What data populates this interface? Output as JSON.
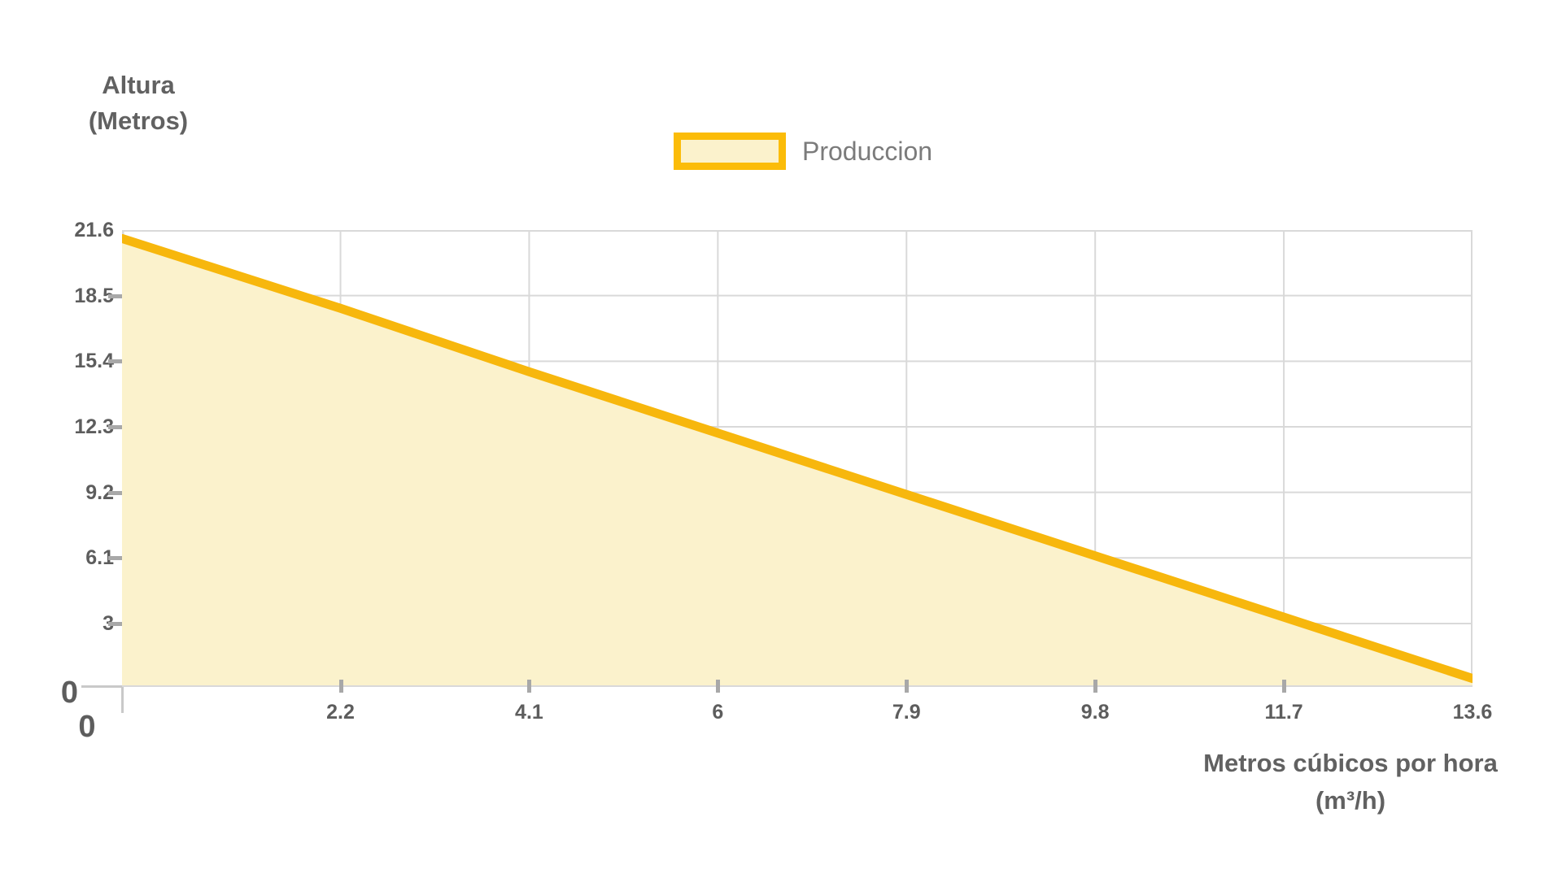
{
  "y_axis": {
    "title_line1": "Altura",
    "title_line2": "(Metros)",
    "origin_label": "0"
  },
  "x_axis": {
    "title_line1": "Metros cúbicos por hora",
    "title_line2": "(m³/h)",
    "origin_label": "0"
  },
  "legend": {
    "label": "Produccion"
  },
  "colors": {
    "line": "#F7B70D",
    "area_fill": "#FBF2CC",
    "legend_border": "#FBBC09",
    "grid": "#D9D9D9",
    "border": "#D9D9D9",
    "tick_mark": "#A8A8A8",
    "tick_text": "#5D5D5D",
    "title_text": "#616161",
    "legend_text": "#7B7B7B"
  },
  "chart_data": {
    "type": "area",
    "title": "",
    "xlabel": "Metros cúbicos por hora (m³/h)",
    "ylabel": "Altura (Metros)",
    "xlim": [
      0,
      13.6
    ],
    "ylim": [
      0,
      21.6
    ],
    "x_ticks": [
      0,
      2.2,
      4.1,
      6,
      7.9,
      9.8,
      11.7,
      13.6
    ],
    "y_ticks": [
      0,
      3,
      6.1,
      9.2,
      12.3,
      15.4,
      18.5,
      21.6
    ],
    "grid": true,
    "legend_position": "top-center",
    "series": [
      {
        "name": "Produccion",
        "x": [
          0,
          2.2,
          4.1,
          6,
          7.9,
          9.8,
          11.7,
          13.6
        ],
        "y": [
          21.2,
          17.9,
          14.9,
          12.0,
          9.1,
          6.2,
          3.3,
          0.4
        ],
        "line_color": "#F7B70D",
        "fill_color": "#FBF2CC"
      }
    ]
  }
}
